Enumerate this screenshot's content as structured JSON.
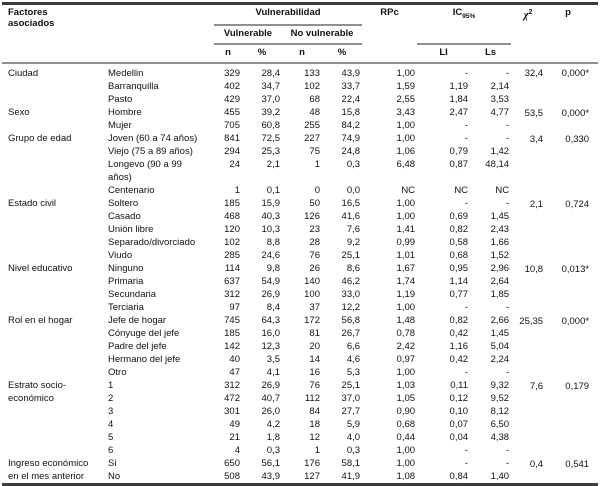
{
  "table": {
    "header": {
      "factors": "Factores\nasociados",
      "vulnerability": "Vulnerabilidad",
      "vulnerable": "Vulnerable",
      "no_vulnerable": "No vulnerable",
      "n1": "n",
      "pct1": "%",
      "n2": "n",
      "pct2": "%",
      "rpc": "RPc",
      "ic_label": "IC",
      "ic_sub": "95%",
      "li": "LI",
      "ls": "Ls",
      "chi_base": "χ",
      "chi_exp": "2",
      "p": "p"
    },
    "groups": [
      {
        "factor": "Ciudad",
        "chi2": "32,4",
        "p": "0,000*",
        "rows": [
          {
            "label": "Medellin",
            "n1": "329",
            "p1": "28,4",
            "n2": "133",
            "p2": "43,9",
            "rpc": "1,00",
            "li": "-",
            "ls": "-"
          },
          {
            "label": "Barranquilla",
            "n1": "402",
            "p1": "34,7",
            "n2": "102",
            "p2": "33,7",
            "rpc": "1,59",
            "li": "1,19",
            "ls": "2,14"
          },
          {
            "label": "Pasto",
            "n1": "429",
            "p1": "37,0",
            "n2": "68",
            "p2": "22,4",
            "rpc": "2,55",
            "li": "1,84",
            "ls": "3,53"
          }
        ]
      },
      {
        "factor": "Sexo",
        "chi2": "53,5",
        "p": "0,000*",
        "rows": [
          {
            "label": "Hombre",
            "n1": "455",
            "p1": "39,2",
            "n2": "48",
            "p2": "15,8",
            "rpc": "3,43",
            "li": "2,47",
            "ls": "4,77"
          },
          {
            "label": "Mujer",
            "n1": "705",
            "p1": "60,8",
            "n2": "255",
            "p2": "84,2",
            "rpc": "1,00",
            "li": "-",
            "ls": "-"
          }
        ]
      },
      {
        "factor": "Grupo de edad",
        "chi2": "3,4",
        "p": "0,330",
        "rows": [
          {
            "label": "Joven (60 a 74 años)",
            "n1": "841",
            "p1": "72,5",
            "n2": "227",
            "p2": "74,9",
            "rpc": "1,00",
            "li": "-",
            "ls": "-"
          },
          {
            "label": "Viejo (75 a 89 años)",
            "n1": "294",
            "p1": "25,3",
            "n2": "75",
            "p2": "24,8",
            "rpc": "1,06",
            "li": "0,79",
            "ls": "1,42"
          },
          {
            "label": "Longevo (90 a 99\naños)",
            "n1": "24",
            "p1": "2,1",
            "n2": "1",
            "p2": "0,3",
            "rpc": "6,48",
            "li": "0,87",
            "ls": "48,14"
          },
          {
            "label": "Centenario",
            "n1": "1",
            "p1": "0,1",
            "n2": "0",
            "p2": "0,0",
            "rpc": "NC",
            "li": "NC",
            "ls": "NC"
          }
        ]
      },
      {
        "factor": "Estado civil",
        "chi2": "2,1",
        "p": "0,724",
        "rows": [
          {
            "label": "Soltero",
            "n1": "185",
            "p1": "15,9",
            "n2": "50",
            "p2": "16,5",
            "rpc": "1,00",
            "li": "-",
            "ls": "-"
          },
          {
            "label": "Casado",
            "n1": "468",
            "p1": "40,3",
            "n2": "126",
            "p2": "41,6",
            "rpc": "1,00",
            "li": "0,69",
            "ls": "1,45"
          },
          {
            "label": "Unión libre",
            "n1": "120",
            "p1": "10,3",
            "n2": "23",
            "p2": "7,6",
            "rpc": "1,41",
            "li": "0,82",
            "ls": "2,43"
          },
          {
            "label": "Separado/divorciado",
            "n1": "102",
            "p1": "8,8",
            "n2": "28",
            "p2": "9,2",
            "rpc": "0,99",
            "li": "0,58",
            "ls": "1,66"
          },
          {
            "label": "Viudo",
            "n1": "285",
            "p1": "24,6",
            "n2": "76",
            "p2": "25,1",
            "rpc": "1,01",
            "li": "0,68",
            "ls": "1,52"
          }
        ]
      },
      {
        "factor": "Nivel educativo",
        "chi2": "10,8",
        "p": "0,013*",
        "rows": [
          {
            "label": "Ninguno",
            "n1": "114",
            "p1": "9,8",
            "n2": "26",
            "p2": "8,6",
            "rpc": "1,67",
            "li": "0,95",
            "ls": "2,96"
          },
          {
            "label": "Primaria",
            "n1": "637",
            "p1": "54,9",
            "n2": "140",
            "p2": "46,2",
            "rpc": "1,74",
            "li": "1,14",
            "ls": "2,64"
          },
          {
            "label": "Secundaria",
            "n1": "312",
            "p1": "26,9",
            "n2": "100",
            "p2": "33,0",
            "rpc": "1,19",
            "li": "0,77",
            "ls": "1,85"
          },
          {
            "label": "Terciaria",
            "n1": "97",
            "p1": "8,4",
            "n2": "37",
            "p2": "12,2",
            "rpc": "1,00",
            "li": "-",
            "ls": "-"
          }
        ]
      },
      {
        "factor": "Rol en el hogar",
        "chi2": "25,35",
        "p": "0,000*",
        "rows": [
          {
            "label": "Jefe de hogar",
            "n1": "745",
            "p1": "64,3",
            "n2": "172",
            "p2": "56,8",
            "rpc": "1,48",
            "li": "0,82",
            "ls": "2,66"
          },
          {
            "label": "Cónyuge del jefe",
            "n1": "185",
            "p1": "16,0",
            "n2": "81",
            "p2": "26,7",
            "rpc": "0,78",
            "li": "0,42",
            "ls": "1,45"
          },
          {
            "label": "Padre del jefe",
            "n1": "142",
            "p1": "12,3",
            "n2": "20",
            "p2": "6,6",
            "rpc": "2,42",
            "li": "1,16",
            "ls": "5,04"
          },
          {
            "label": "Hermano del jefe",
            "n1": "40",
            "p1": "3,5",
            "n2": "14",
            "p2": "4,6",
            "rpc": "0,97",
            "li": "0,42",
            "ls": "2,24"
          },
          {
            "label": "Otro",
            "n1": "47",
            "p1": "4,1",
            "n2": "16",
            "p2": "5,3",
            "rpc": "1,00",
            "li": "-",
            "ls": "-"
          }
        ]
      },
      {
        "factor": "Estrato socio-\neconómico",
        "chi2": "7,6",
        "p": "0,179",
        "rows": [
          {
            "label": "1",
            "n1": "312",
            "p1": "26,9",
            "n2": "76",
            "p2": "25,1",
            "rpc": "1,03",
            "li": "0,11",
            "ls": "9,32"
          },
          {
            "label": "2",
            "n1": "472",
            "p1": "40,7",
            "n2": "112",
            "p2": "37,0",
            "rpc": "1,05",
            "li": "0,12",
            "ls": "9,52"
          },
          {
            "label": "3",
            "n1": "301",
            "p1": "26,0",
            "n2": "84",
            "p2": "27,7",
            "rpc": "0,90",
            "li": "0,10",
            "ls": "8,12"
          },
          {
            "label": "4",
            "n1": "49",
            "p1": "4,2",
            "n2": "18",
            "p2": "5,9",
            "rpc": "0,68",
            "li": "0,07",
            "ls": "6,50"
          },
          {
            "label": "5",
            "n1": "21",
            "p1": "1,8",
            "n2": "12",
            "p2": "4,0",
            "rpc": "0,44",
            "li": "0,04",
            "ls": "4,38"
          },
          {
            "label": "6",
            "n1": "4",
            "p1": "0,3",
            "n2": "1",
            "p2": "0,3",
            "rpc": "1,00",
            "li": "-",
            "ls": "-"
          }
        ]
      },
      {
        "factor": "Ingreso económico\nen el mes anterior",
        "chi2": "0,4",
        "p": "0,541",
        "rows": [
          {
            "label": "Si",
            "n1": "650",
            "p1": "56,1",
            "n2": "176",
            "p2": "58,1",
            "rpc": "1,00",
            "li": "-",
            "ls": "-"
          },
          {
            "label": "No",
            "n1": "508",
            "p1": "43,9",
            "n2": "127",
            "p2": "41,9",
            "rpc": "1,08",
            "li": "0,84",
            "ls": "1,40"
          }
        ]
      }
    ]
  }
}
